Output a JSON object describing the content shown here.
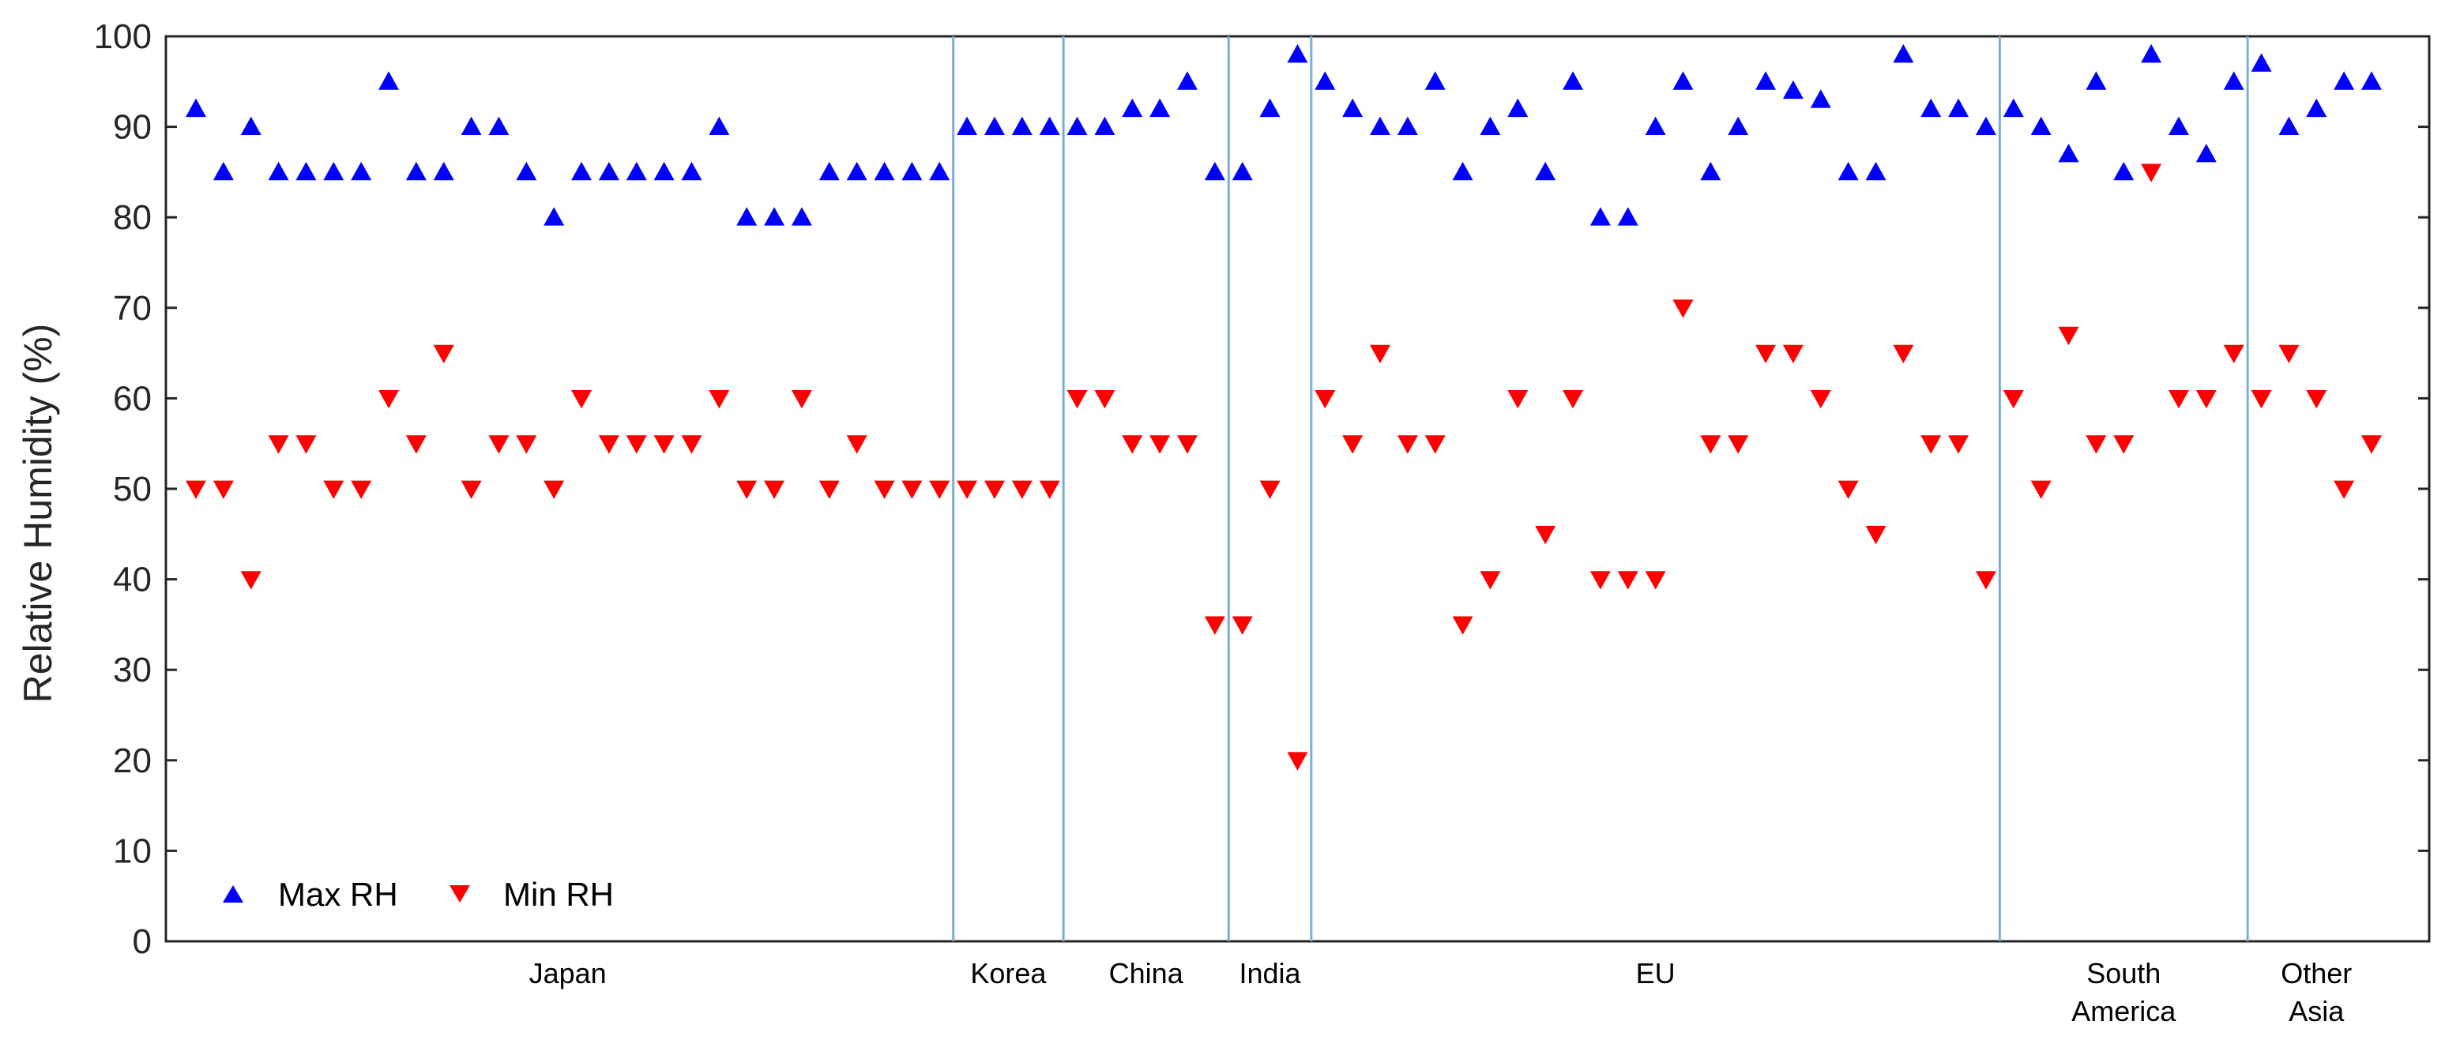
{
  "chart_data": {
    "type": "scatter",
    "ylabel": "Relative Humidity (%)",
    "xlabel": "",
    "ylim": [
      0,
      100
    ],
    "yticks": [
      0,
      10,
      20,
      30,
      40,
      50,
      60,
      70,
      80,
      90,
      100
    ],
    "yticks_labels": [
      "0",
      "10",
      "20",
      "30",
      "40",
      "50",
      "60",
      "70",
      "80",
      "90",
      "100"
    ],
    "grid": false,
    "legend_position": "bottom-left",
    "series": [
      {
        "name": "Max RH",
        "marker": "triangle-up",
        "color": "#0000ff",
        "values": [
          92,
          85,
          90,
          85,
          85,
          85,
          85,
          95,
          85,
          85,
          90,
          90,
          85,
          80,
          85,
          85,
          85,
          85,
          85,
          90,
          80,
          80,
          80,
          85,
          85,
          85,
          85,
          85,
          90,
          90,
          90,
          90,
          90,
          90,
          92,
          92,
          95,
          85,
          85,
          92,
          98,
          95,
          92,
          90,
          90,
          95,
          85,
          90,
          92,
          85,
          95,
          80,
          80,
          90,
          95,
          85,
          90,
          95,
          94,
          93,
          85,
          85,
          98,
          92,
          92,
          90,
          92,
          90,
          87,
          95,
          85,
          98,
          90,
          87,
          95,
          97,
          90,
          92,
          95,
          95
        ]
      },
      {
        "name": "Min RH",
        "marker": "triangle-down",
        "color": "#ff0000",
        "values": [
          50,
          50,
          40,
          55,
          55,
          50,
          50,
          60,
          55,
          65,
          50,
          55,
          55,
          50,
          60,
          55,
          55,
          55,
          55,
          60,
          50,
          50,
          60,
          50,
          55,
          50,
          50,
          50,
          50,
          50,
          50,
          50,
          60,
          60,
          55,
          55,
          55,
          35,
          35,
          50,
          20,
          60,
          55,
          65,
          55,
          55,
          35,
          40,
          60,
          45,
          60,
          40,
          40,
          40,
          70,
          55,
          55,
          65,
          65,
          60,
          50,
          45,
          65,
          55,
          55,
          40,
          60,
          50,
          67,
          55,
          55,
          85,
          60,
          60,
          65,
          60,
          65,
          60,
          50,
          55
        ]
      }
    ],
    "regions": [
      {
        "label": "Japan",
        "start": 1,
        "end": 28
      },
      {
        "label": "Korea",
        "start": 29,
        "end": 32
      },
      {
        "label": "China",
        "start": 33,
        "end": 38
      },
      {
        "label": "India",
        "start": 39,
        "end": 41
      },
      {
        "label": "EU",
        "start": 42,
        "end": 66
      },
      {
        "label": "South America",
        "start": 67,
        "end": 75
      },
      {
        "label": "Other Asia",
        "start": 76,
        "end": 80
      }
    ],
    "colors": {
      "max": "#0000ff",
      "min": "#ff0000",
      "divider": "#7aaed0",
      "axis": "#262626"
    }
  }
}
